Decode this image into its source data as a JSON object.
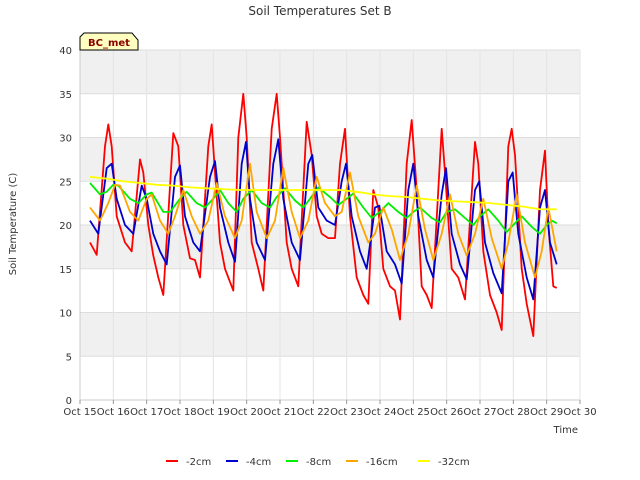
{
  "chart_data": {
    "type": "line",
    "title": "Soil Temperatures Set B",
    "xlabel": "Time",
    "ylabel": "Soil Temperature (C)",
    "badge": "BC_met",
    "xlim": [
      15,
      30
    ],
    "ylim": [
      0,
      40
    ],
    "yticks": [
      0,
      5,
      10,
      15,
      20,
      25,
      30,
      35,
      40
    ],
    "xticks": [
      15,
      16,
      17,
      18,
      19,
      20,
      21,
      22,
      23,
      24,
      25,
      26,
      27,
      28,
      29,
      30
    ],
    "xtick_labels": [
      "Oct 15",
      "Oct 16",
      "Oct 17",
      "Oct 18",
      "Oct 19",
      "Oct 20",
      "Oct 21",
      "Oct 22",
      "Oct 23",
      "Oct 24",
      "Oct 25",
      "Oct 26",
      "Oct 27",
      "Oct 28",
      "Oct 29",
      "Oct 30"
    ],
    "grid": "horizontal bands",
    "legend_position": "bottom",
    "series": [
      {
        "name": "-2cm",
        "color": "#ff0000",
        "points": [
          [
            15.3,
            18.0
          ],
          [
            15.5,
            16.6
          ],
          [
            15.75,
            29.0
          ],
          [
            15.85,
            31.5
          ],
          [
            15.95,
            29.0
          ],
          [
            16.1,
            21.0
          ],
          [
            16.35,
            18.0
          ],
          [
            16.55,
            17.0
          ],
          [
            16.8,
            27.5
          ],
          [
            16.9,
            26.0
          ],
          [
            17.05,
            20.0
          ],
          [
            17.2,
            16.5
          ],
          [
            17.35,
            14.0
          ],
          [
            17.5,
            12.0
          ],
          [
            17.8,
            30.5
          ],
          [
            17.95,
            29.0
          ],
          [
            18.1,
            20.0
          ],
          [
            18.3,
            16.2
          ],
          [
            18.45,
            16.0
          ],
          [
            18.6,
            14.0
          ],
          [
            18.85,
            29.0
          ],
          [
            18.95,
            31.5
          ],
          [
            19.05,
            26.0
          ],
          [
            19.2,
            18.0
          ],
          [
            19.35,
            15.0
          ],
          [
            19.6,
            12.5
          ],
          [
            19.75,
            30.0
          ],
          [
            19.9,
            35.0
          ],
          [
            20.0,
            30.0
          ],
          [
            20.15,
            18.0
          ],
          [
            20.35,
            15.0
          ],
          [
            20.5,
            12.5
          ],
          [
            20.75,
            31.0
          ],
          [
            20.9,
            35.0
          ],
          [
            21.0,
            30.0
          ],
          [
            21.2,
            18.0
          ],
          [
            21.35,
            15.0
          ],
          [
            21.55,
            13.0
          ],
          [
            21.8,
            31.8
          ],
          [
            21.95,
            28.0
          ],
          [
            22.1,
            21.0
          ],
          [
            22.25,
            19.0
          ],
          [
            22.45,
            18.5
          ],
          [
            22.65,
            18.5
          ],
          [
            22.8,
            27.0
          ],
          [
            22.95,
            31.0
          ],
          [
            23.1,
            21.0
          ],
          [
            23.3,
            14.0
          ],
          [
            23.5,
            12.0
          ],
          [
            23.65,
            11.0
          ],
          [
            23.8,
            24.0
          ],
          [
            23.95,
            22.0
          ],
          [
            24.1,
            15.0
          ],
          [
            24.3,
            13.0
          ],
          [
            24.45,
            12.5
          ],
          [
            24.6,
            9.2
          ],
          [
            24.8,
            27.0
          ],
          [
            24.95,
            32.0
          ],
          [
            25.1,
            24.0
          ],
          [
            25.25,
            13.0
          ],
          [
            25.4,
            12.0
          ],
          [
            25.55,
            10.5
          ],
          [
            25.85,
            31.0
          ],
          [
            25.95,
            26.0
          ],
          [
            26.15,
            15.0
          ],
          [
            26.35,
            14.0
          ],
          [
            26.55,
            11.5
          ],
          [
            26.85,
            29.5
          ],
          [
            26.95,
            27.0
          ],
          [
            27.1,
            17.0
          ],
          [
            27.3,
            12.0
          ],
          [
            27.5,
            10.0
          ],
          [
            27.65,
            8.0
          ],
          [
            27.85,
            29.0
          ],
          [
            27.95,
            31.0
          ],
          [
            28.05,
            28.0
          ],
          [
            28.25,
            15.0
          ],
          [
            28.4,
            11.0
          ],
          [
            28.6,
            7.3
          ],
          [
            28.8,
            24.0
          ],
          [
            28.95,
            28.5
          ],
          [
            29.05,
            20.0
          ],
          [
            29.2,
            13.0
          ],
          [
            29.3,
            12.8
          ]
        ]
      },
      {
        "name": "-4cm",
        "color": "#0000cc",
        "points": [
          [
            15.3,
            20.5
          ],
          [
            15.55,
            19.0
          ],
          [
            15.8,
            26.5
          ],
          [
            15.95,
            27.0
          ],
          [
            16.1,
            23.0
          ],
          [
            16.35,
            20.0
          ],
          [
            16.6,
            19.0
          ],
          [
            16.85,
            24.5
          ],
          [
            17.0,
            23.0
          ],
          [
            17.2,
            19.0
          ],
          [
            17.4,
            17.0
          ],
          [
            17.6,
            15.5
          ],
          [
            17.85,
            25.5
          ],
          [
            18.0,
            26.8
          ],
          [
            18.15,
            21.0
          ],
          [
            18.4,
            18.0
          ],
          [
            18.6,
            17.0
          ],
          [
            18.9,
            25.5
          ],
          [
            19.05,
            27.3
          ],
          [
            19.2,
            22.0
          ],
          [
            19.45,
            18.0
          ],
          [
            19.65,
            15.8
          ],
          [
            19.85,
            27.0
          ],
          [
            19.98,
            29.5
          ],
          [
            20.1,
            23.0
          ],
          [
            20.3,
            18.0
          ],
          [
            20.55,
            16.0
          ],
          [
            20.8,
            27.0
          ],
          [
            20.95,
            29.8
          ],
          [
            21.1,
            23.0
          ],
          [
            21.35,
            18.0
          ],
          [
            21.6,
            16.0
          ],
          [
            21.85,
            27.0
          ],
          [
            21.97,
            28.0
          ],
          [
            22.15,
            22.0
          ],
          [
            22.4,
            20.5
          ],
          [
            22.65,
            20.0
          ],
          [
            22.85,
            25.0
          ],
          [
            22.98,
            27.0
          ],
          [
            23.15,
            21.0
          ],
          [
            23.4,
            17.0
          ],
          [
            23.6,
            15.0
          ],
          [
            23.85,
            22.0
          ],
          [
            23.98,
            22.2
          ],
          [
            24.2,
            17.0
          ],
          [
            24.45,
            15.5
          ],
          [
            24.65,
            13.3
          ],
          [
            24.85,
            24.0
          ],
          [
            25.0,
            27.0
          ],
          [
            25.15,
            21.0
          ],
          [
            25.4,
            16.0
          ],
          [
            25.6,
            14.0
          ],
          [
            25.85,
            23.5
          ],
          [
            25.98,
            26.5
          ],
          [
            26.15,
            19.0
          ],
          [
            26.4,
            15.5
          ],
          [
            26.6,
            13.8
          ],
          [
            26.85,
            24.0
          ],
          [
            26.98,
            25.0
          ],
          [
            27.15,
            18.0
          ],
          [
            27.4,
            14.5
          ],
          [
            27.65,
            12.2
          ],
          [
            27.85,
            25.0
          ],
          [
            27.98,
            26.0
          ],
          [
            28.15,
            19.0
          ],
          [
            28.4,
            14.0
          ],
          [
            28.6,
            11.5
          ],
          [
            28.8,
            22.0
          ],
          [
            28.95,
            24.0
          ],
          [
            29.1,
            18.0
          ],
          [
            29.3,
            15.5
          ]
        ]
      },
      {
        "name": "-8cm",
        "color": "#00ee00",
        "points": [
          [
            15.3,
            24.8
          ],
          [
            15.6,
            23.5
          ],
          [
            15.8,
            23.8
          ],
          [
            16.0,
            24.6
          ],
          [
            16.15,
            24.5
          ],
          [
            16.5,
            23.0
          ],
          [
            16.75,
            22.5
          ],
          [
            17.0,
            23.5
          ],
          [
            17.15,
            23.7
          ],
          [
            17.5,
            21.5
          ],
          [
            17.7,
            21.5
          ],
          [
            18.0,
            23.0
          ],
          [
            18.2,
            23.8
          ],
          [
            18.5,
            22.5
          ],
          [
            18.75,
            22.0
          ],
          [
            19.0,
            23.0
          ],
          [
            19.2,
            24.0
          ],
          [
            19.45,
            22.5
          ],
          [
            19.7,
            21.5
          ],
          [
            19.9,
            23.0
          ],
          [
            20.15,
            24.0
          ],
          [
            20.45,
            22.5
          ],
          [
            20.7,
            22.0
          ],
          [
            20.9,
            23.2
          ],
          [
            21.15,
            24.2
          ],
          [
            21.45,
            22.8
          ],
          [
            21.7,
            22.0
          ],
          [
            21.9,
            23.0
          ],
          [
            22.15,
            24.3
          ],
          [
            22.5,
            23.2
          ],
          [
            22.75,
            22.3
          ],
          [
            23.0,
            23.0
          ],
          [
            23.2,
            23.6
          ],
          [
            23.5,
            22.0
          ],
          [
            23.75,
            20.8
          ],
          [
            24.0,
            21.5
          ],
          [
            24.25,
            22.5
          ],
          [
            24.55,
            21.5
          ],
          [
            24.8,
            20.8
          ],
          [
            25.0,
            21.5
          ],
          [
            25.2,
            22.0
          ],
          [
            25.55,
            20.8
          ],
          [
            25.8,
            20.3
          ],
          [
            26.0,
            21.5
          ],
          [
            26.25,
            21.8
          ],
          [
            26.55,
            20.8
          ],
          [
            26.8,
            20.0
          ],
          [
            27.0,
            21.0
          ],
          [
            27.25,
            21.8
          ],
          [
            27.55,
            20.5
          ],
          [
            27.8,
            19.2
          ],
          [
            28.0,
            20.0
          ],
          [
            28.25,
            21.0
          ],
          [
            28.55,
            19.8
          ],
          [
            28.8,
            19.0
          ],
          [
            29.0,
            20.0
          ],
          [
            29.15,
            20.5
          ],
          [
            29.3,
            20.2
          ]
        ]
      },
      {
        "name": "-16cm",
        "color": "#ffa500",
        "points": [
          [
            15.3,
            22.0
          ],
          [
            15.6,
            20.5
          ],
          [
            15.85,
            22.5
          ],
          [
            16.05,
            24.6
          ],
          [
            16.2,
            24.5
          ],
          [
            16.5,
            21.5
          ],
          [
            16.75,
            20.5
          ],
          [
            17.0,
            23.0
          ],
          [
            17.15,
            23.5
          ],
          [
            17.4,
            20.5
          ],
          [
            17.65,
            19.0
          ],
          [
            17.85,
            21.0
          ],
          [
            18.1,
            24.0
          ],
          [
            18.35,
            21.0
          ],
          [
            18.6,
            19.0
          ],
          [
            18.85,
            20.5
          ],
          [
            19.1,
            24.8
          ],
          [
            19.35,
            21.0
          ],
          [
            19.65,
            18.5
          ],
          [
            19.85,
            20.5
          ],
          [
            20.1,
            27.0
          ],
          [
            20.3,
            21.5
          ],
          [
            20.6,
            18.5
          ],
          [
            20.85,
            20.5
          ],
          [
            21.1,
            26.5
          ],
          [
            21.35,
            21.5
          ],
          [
            21.6,
            18.5
          ],
          [
            21.85,
            20.5
          ],
          [
            22.1,
            25.5
          ],
          [
            22.35,
            22.5
          ],
          [
            22.65,
            21.0
          ],
          [
            22.85,
            21.5
          ],
          [
            23.1,
            26.0
          ],
          [
            23.35,
            21.0
          ],
          [
            23.65,
            18.0
          ],
          [
            23.85,
            19.0
          ],
          [
            24.1,
            22.0
          ],
          [
            24.35,
            19.5
          ],
          [
            24.6,
            16.0
          ],
          [
            24.85,
            19.0
          ],
          [
            25.1,
            24.5
          ],
          [
            25.35,
            19.5
          ],
          [
            25.6,
            16.0
          ],
          [
            25.85,
            19.0
          ],
          [
            26.1,
            23.5
          ],
          [
            26.35,
            19.0
          ],
          [
            26.6,
            16.5
          ],
          [
            26.85,
            19.0
          ],
          [
            27.1,
            23.0
          ],
          [
            27.35,
            18.5
          ],
          [
            27.65,
            15.0
          ],
          [
            27.85,
            18.0
          ],
          [
            28.1,
            23.5
          ],
          [
            28.35,
            18.0
          ],
          [
            28.65,
            14.0
          ],
          [
            28.85,
            17.0
          ],
          [
            29.05,
            22.0
          ],
          [
            29.3,
            17.0
          ]
        ]
      },
      {
        "name": "-32cm",
        "color": "#ffff00",
        "points": [
          [
            15.3,
            25.5
          ],
          [
            15.8,
            25.3
          ],
          [
            16.3,
            25.0
          ],
          [
            16.8,
            24.8
          ],
          [
            17.3,
            24.6
          ],
          [
            17.8,
            24.5
          ],
          [
            18.3,
            24.3
          ],
          [
            18.8,
            24.2
          ],
          [
            19.3,
            24.1
          ],
          [
            19.8,
            24.0
          ],
          [
            20.3,
            24.0
          ],
          [
            20.8,
            24.0
          ],
          [
            21.3,
            24.0
          ],
          [
            21.8,
            24.0
          ],
          [
            22.3,
            24.0
          ],
          [
            22.8,
            24.0
          ],
          [
            23.3,
            23.8
          ],
          [
            23.8,
            23.5
          ],
          [
            24.3,
            23.3
          ],
          [
            24.8,
            23.2
          ],
          [
            25.3,
            23.0
          ],
          [
            25.8,
            22.8
          ],
          [
            26.3,
            22.7
          ],
          [
            26.8,
            22.6
          ],
          [
            27.3,
            22.5
          ],
          [
            27.8,
            22.3
          ],
          [
            28.3,
            22.1
          ],
          [
            28.8,
            21.8
          ],
          [
            29.3,
            21.8
          ]
        ]
      }
    ]
  }
}
